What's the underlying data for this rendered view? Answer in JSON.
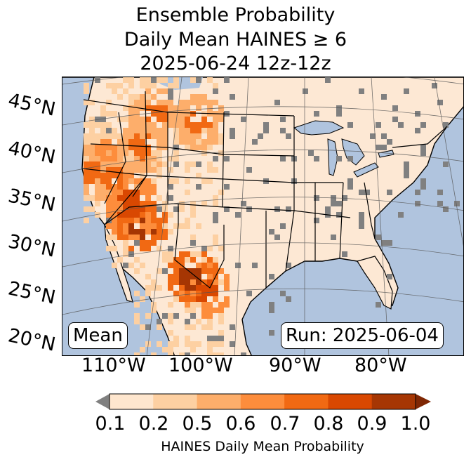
{
  "title": {
    "line1": "Ensemble Probability",
    "line2": "Daily Mean HAINES ≥ 6",
    "line3": "2025-06-24 12z-12z"
  },
  "map": {
    "latitude_labels": [
      "45°N",
      "40°N",
      "35°N",
      "30°N",
      "25°N",
      "20°N"
    ],
    "longitude_labels": [
      "110°W",
      "100°W",
      "90°W",
      "80°W"
    ],
    "stat_label": "Mean",
    "run_label": "Run: 2025-06-04",
    "colors": {
      "ocean": "#b0c4de",
      "land_base": "#fde8d4",
      "below_min": "#808080",
      "borders": "#000000",
      "graticule": "#555555"
    }
  },
  "colorbar": {
    "label": "HAINES Daily Mean Probability",
    "ticks": [
      "0.1",
      "0.2",
      "0.5",
      "0.6",
      "0.7",
      "0.8",
      "0.9",
      "1.0"
    ],
    "colors": [
      "#fff5eb",
      "#fee6ce",
      "#fdd0a2",
      "#fdae6b",
      "#fd8d3c",
      "#f16913",
      "#d94801",
      "#a63603"
    ],
    "under_color": "#808080",
    "over_color": "#7f2704"
  }
}
